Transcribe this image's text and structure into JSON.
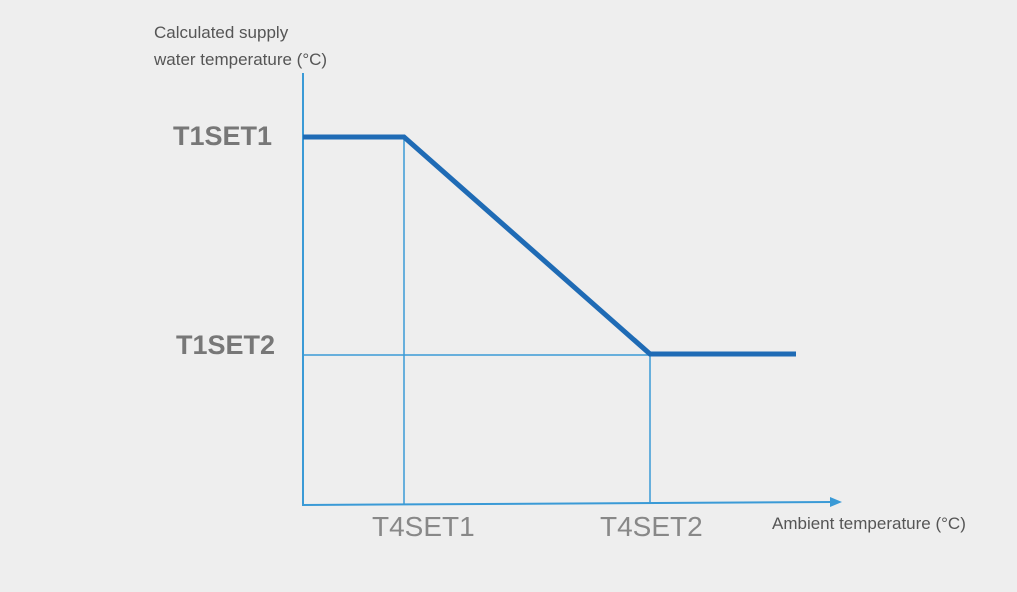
{
  "chart_data": {
    "type": "line",
    "ylabel_lines": [
      "Calculated supply",
      "water temperature (°C)"
    ],
    "xlabel": "Ambient temperature (°C)",
    "x_ticks": [
      "T4SET1",
      "T4SET2"
    ],
    "y_ticks": [
      "T1SET1",
      "T1SET2"
    ],
    "series": [
      {
        "points": [
          [
            "axis-start",
            "T1SET1"
          ],
          [
            "T4SET1",
            "T1SET1"
          ],
          [
            "T4SET2",
            "T1SET2"
          ],
          [
            "axis-end",
            "T1SET2"
          ]
        ]
      }
    ],
    "grid": false,
    "guide_lines": true,
    "colors": {
      "line": "#1f6bb5",
      "axis": "#3a9ad6",
      "background": "#eeeeee"
    }
  }
}
